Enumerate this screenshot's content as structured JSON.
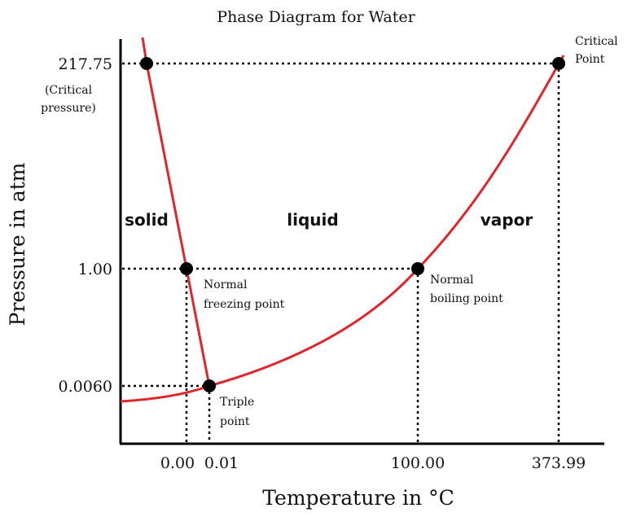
{
  "title": "Phase Diagram for Water",
  "axes": {
    "x_label": "Temperature in °C",
    "y_label": "Pressure in atm",
    "x_ticks": [
      "0.00",
      "0.01",
      "100.00",
      "373.99"
    ],
    "y_ticks": [
      "217.75",
      "1.00",
      "0.0060"
    ],
    "y_tick_note": [
      "(Critical",
      "pressure)"
    ]
  },
  "regions": [
    "solid",
    "liquid",
    "vapor"
  ],
  "points": [
    {
      "label": [
        "Critical",
        "Point"
      ]
    },
    {
      "label": [
        "Normal",
        "freezing point"
      ]
    },
    {
      "label": [
        "Normal",
        "boiling point"
      ]
    },
    {
      "label": [
        "Triple",
        "point"
      ]
    }
  ]
}
